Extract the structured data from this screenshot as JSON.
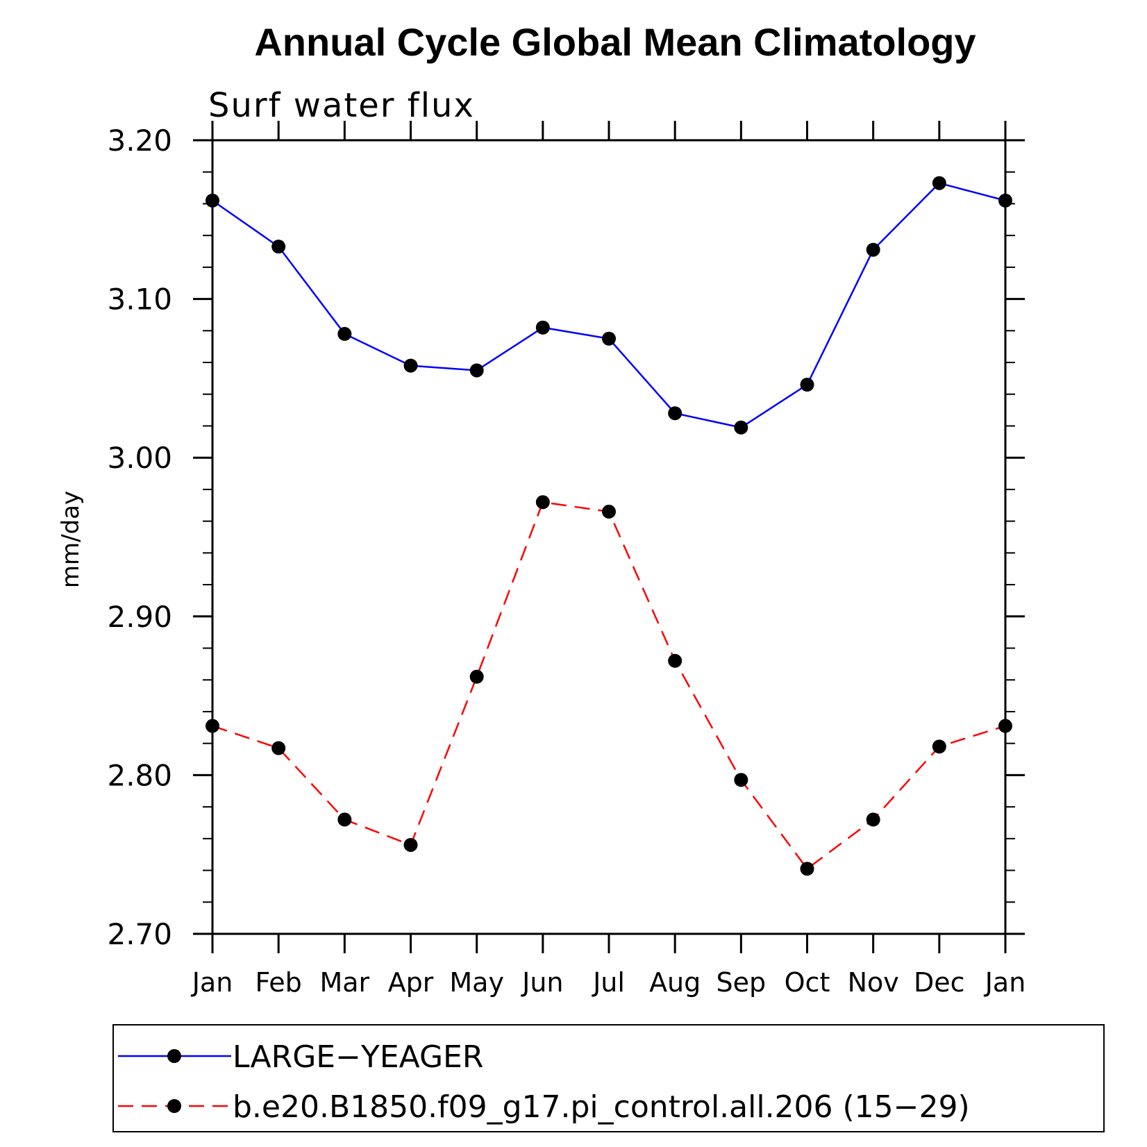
{
  "chart_data": {
    "type": "line",
    "title": "Annual Cycle Global Mean Climatology",
    "subtitle": "Surf  water  flux",
    "ylabel": "mm/day",
    "xlabel": "",
    "ylim": [
      2.7,
      3.2
    ],
    "yticks": [
      "2.70",
      "2.80",
      "2.90",
      "3.00",
      "3.10",
      "3.20"
    ],
    "categories": [
      "Jan",
      "Feb",
      "Mar",
      "Apr",
      "May",
      "Jun",
      "Jul",
      "Aug",
      "Sep",
      "Oct",
      "Nov",
      "Dec",
      "Jan"
    ],
    "series": [
      {
        "name": "LARGE−YEAGER",
        "color": "#0000ff",
        "dash": "solid",
        "values": [
          3.162,
          3.133,
          3.078,
          3.058,
          3.055,
          3.082,
          3.075,
          3.028,
          3.019,
          3.046,
          3.131,
          3.173,
          3.162
        ]
      },
      {
        "name": "b.e20.B1850.f09_g17.pi_control.all.206 (15−29)",
        "color": "#ff0000",
        "dash": "dashed",
        "values": [
          2.831,
          2.817,
          2.772,
          2.756,
          2.862,
          2.972,
          2.966,
          2.872,
          2.797,
          2.741,
          2.772,
          2.818,
          2.831
        ]
      }
    ],
    "legend_placement": "bottom",
    "grid": false
  }
}
